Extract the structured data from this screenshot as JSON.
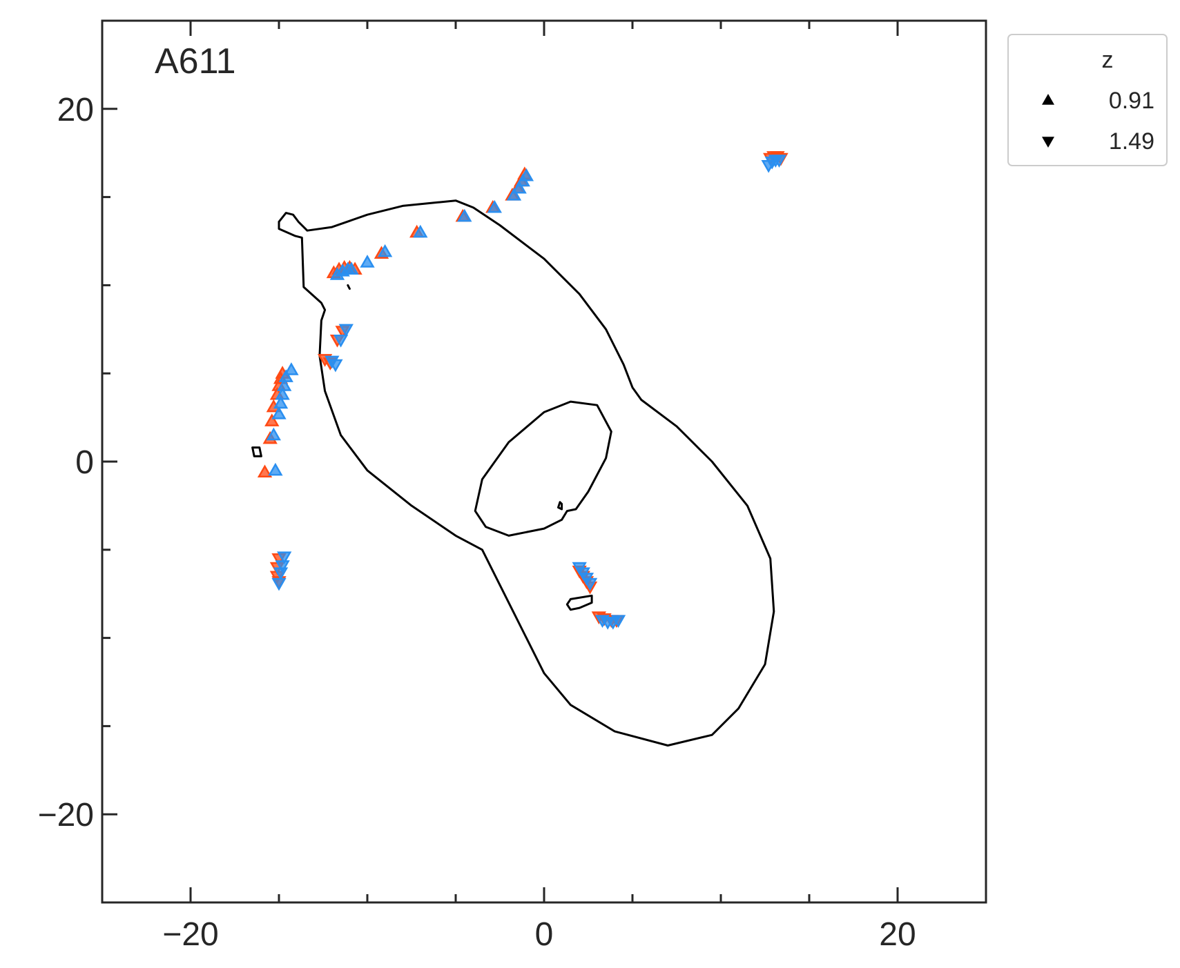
{
  "chart_data": {
    "type": "scatter",
    "title": "A611",
    "xlabel": "",
    "ylabel": "",
    "xlim": [
      -25,
      25
    ],
    "ylim": [
      -25,
      25
    ],
    "x_major_ticks": [
      -20,
      0,
      20
    ],
    "x_tick_labels": [
      "−20",
      "0",
      "20"
    ],
    "y_major_ticks": [
      20,
      0,
      -20
    ],
    "y_tick_labels": [
      "20",
      "0",
      "−20"
    ],
    "minor_ticks": [
      -15,
      -10,
      -5,
      5,
      10,
      15
    ],
    "grid": false,
    "legend": {
      "title": "z",
      "placement": "outside-top-right",
      "entries": [
        {
          "marker": "triangle-up",
          "label": "0.91"
        },
        {
          "marker": "triangle-down",
          "label": "1.49"
        }
      ]
    },
    "series_colors": {
      "red": "#ff4a14",
      "blue": "#2a8ff0"
    },
    "series": [
      {
        "marker": "triangle-up",
        "color": "#ff4a14",
        "points": [
          [
            -15.8,
            -0.6
          ],
          [
            -15.5,
            1.3
          ],
          [
            -15.4,
            2.3
          ],
          [
            -15.3,
            3.1
          ],
          [
            -15.1,
            3.8
          ],
          [
            -15.0,
            4.3
          ],
          [
            -14.9,
            4.7
          ],
          [
            -14.8,
            5.0
          ],
          [
            -11.9,
            10.7
          ],
          [
            -11.6,
            10.9
          ],
          [
            -11.3,
            11.0
          ],
          [
            -11.0,
            11.0
          ],
          [
            -10.7,
            10.9
          ],
          [
            -9.2,
            11.8
          ],
          [
            -7.2,
            13.0
          ],
          [
            -4.6,
            13.9
          ],
          [
            -2.9,
            14.4
          ],
          [
            -1.8,
            15.1
          ],
          [
            -1.5,
            15.5
          ],
          [
            -1.3,
            15.9
          ],
          [
            -1.1,
            16.3
          ]
        ]
      },
      {
        "marker": "triangle-up",
        "color": "#2a8ff0",
        "points": [
          [
            -15.2,
            -0.5
          ],
          [
            -15.3,
            1.5
          ],
          [
            -15.0,
            2.7
          ],
          [
            -14.9,
            3.3
          ],
          [
            -14.8,
            3.8
          ],
          [
            -14.7,
            4.3
          ],
          [
            -14.6,
            4.8
          ],
          [
            -14.3,
            5.2
          ],
          [
            -11.7,
            10.6
          ],
          [
            -11.4,
            10.8
          ],
          [
            -11.1,
            10.9
          ],
          [
            -10.9,
            10.9
          ],
          [
            -10.0,
            11.3
          ],
          [
            -9.0,
            11.9
          ],
          [
            -7.0,
            13.0
          ],
          [
            -4.5,
            13.9
          ],
          [
            -2.8,
            14.4
          ],
          [
            -1.7,
            15.1
          ],
          [
            -1.4,
            15.5
          ],
          [
            -1.2,
            15.9
          ],
          [
            -1.0,
            16.2
          ]
        ]
      },
      {
        "marker": "triangle-down",
        "color": "#ff4a14",
        "points": [
          [
            -15.0,
            -5.5
          ],
          [
            -15.1,
            -6.0
          ],
          [
            -15.1,
            -6.5
          ],
          [
            -15.0,
            -6.8
          ],
          [
            -12.4,
            5.8
          ],
          [
            -12.1,
            5.6
          ],
          [
            -11.7,
            6.9
          ],
          [
            -11.4,
            7.4
          ],
          [
            2.0,
            -6.2
          ],
          [
            2.2,
            -6.5
          ],
          [
            2.4,
            -6.8
          ],
          [
            2.6,
            -7.1
          ],
          [
            3.1,
            -8.8
          ],
          [
            3.4,
            -8.9
          ],
          [
            3.8,
            -9.0
          ],
          [
            4.1,
            -9.0
          ],
          [
            12.8,
            17.2
          ],
          [
            13.0,
            17.3
          ],
          [
            13.2,
            17.3
          ],
          [
            13.4,
            17.2
          ]
        ]
      },
      {
        "marker": "triangle-down",
        "color": "#2a8ff0",
        "points": [
          [
            -14.7,
            -5.4
          ],
          [
            -14.8,
            -5.9
          ],
          [
            -14.9,
            -6.3
          ],
          [
            -15.0,
            -6.9
          ],
          [
            -12.0,
            5.7
          ],
          [
            -11.8,
            5.5
          ],
          [
            -11.5,
            6.9
          ],
          [
            -11.2,
            7.5
          ],
          [
            2.0,
            -6.0
          ],
          [
            2.2,
            -6.3
          ],
          [
            2.4,
            -6.6
          ],
          [
            2.6,
            -6.9
          ],
          [
            3.3,
            -9.0
          ],
          [
            3.6,
            -9.1
          ],
          [
            3.9,
            -9.1
          ],
          [
            4.2,
            -9.0
          ],
          [
            12.7,
            16.8
          ],
          [
            12.9,
            17.0
          ],
          [
            13.1,
            17.1
          ],
          [
            13.3,
            17.1
          ]
        ]
      }
    ],
    "critical_curves": [
      [
        [
          -15,
          13.6
        ],
        [
          -14.6,
          14.1
        ],
        [
          -14.2,
          14.0
        ],
        [
          -13.9,
          13.6
        ],
        [
          -13.4,
          13.1
        ],
        [
          -12.0,
          13.3
        ],
        [
          -10.0,
          14.0
        ],
        [
          -8.0,
          14.5
        ],
        [
          -6.0,
          14.7
        ],
        [
          -5.0,
          14.8
        ],
        [
          -4.0,
          14.4
        ],
        [
          -2.5,
          13.4
        ],
        [
          0.0,
          11.5
        ],
        [
          2.0,
          9.5
        ],
        [
          3.5,
          7.5
        ],
        [
          4.5,
          5.5
        ],
        [
          5.0,
          4.2
        ],
        [
          5.5,
          3.5
        ],
        [
          7.5,
          2.0
        ],
        [
          9.5,
          0.0
        ],
        [
          11.5,
          -2.5
        ],
        [
          12.8,
          -5.5
        ],
        [
          13.0,
          -8.5
        ],
        [
          12.5,
          -11.5
        ],
        [
          11.0,
          -14.0
        ],
        [
          9.5,
          -15.5
        ],
        [
          7.0,
          -16.1
        ],
        [
          4.0,
          -15.3
        ],
        [
          1.5,
          -13.8
        ],
        [
          0.0,
          -12.0
        ],
        [
          -1.0,
          -10.0
        ],
        [
          -2.5,
          -7.0
        ],
        [
          -3.5,
          -5.0
        ],
        [
          -5.0,
          -4.2
        ],
        [
          -7.5,
          -2.5
        ],
        [
          -10.0,
          -0.5
        ],
        [
          -11.5,
          1.5
        ],
        [
          -12.4,
          4.0
        ],
        [
          -12.7,
          6.0
        ],
        [
          -12.6,
          8.0
        ],
        [
          -12.4,
          8.6
        ],
        [
          -12.6,
          9.0
        ],
        [
          -13.6,
          9.9
        ],
        [
          -13.7,
          12.7
        ],
        [
          -14.1,
          12.8
        ],
        [
          -15.0,
          13.2
        ],
        [
          -15,
          13.6
        ]
      ],
      [
        [
          -3.5,
          -1.0
        ],
        [
          -2.0,
          1.1
        ],
        [
          0.0,
          2.8
        ],
        [
          1.5,
          3.4
        ],
        [
          3.0,
          3.2
        ],
        [
          3.8,
          1.7
        ],
        [
          3.5,
          0.2
        ],
        [
          2.5,
          -1.7
        ],
        [
          1.8,
          -2.7
        ],
        [
          1.3,
          -2.8
        ],
        [
          1.0,
          -3.3
        ],
        [
          0.0,
          -3.8
        ],
        [
          -2.0,
          -4.2
        ],
        [
          -3.3,
          -3.7
        ],
        [
          -3.9,
          -2.8
        ],
        [
          -3.5,
          -1.0
        ]
      ],
      [
        [
          1.5,
          -7.8
        ],
        [
          2.7,
          -7.6
        ],
        [
          2.7,
          -8.0
        ],
        [
          2.0,
          -8.3
        ],
        [
          1.5,
          -8.4
        ],
        [
          1.3,
          -8.1
        ],
        [
          1.5,
          -7.8
        ]
      ],
      [
        [
          0.9,
          -2.3
        ],
        [
          1.0,
          -2.4
        ],
        [
          1.0,
          -2.7
        ],
        [
          0.8,
          -2.6
        ],
        [
          0.9,
          -2.3
        ]
      ],
      [
        [
          -16.5,
          0.8
        ],
        [
          -16.1,
          0.8
        ],
        [
          -16.0,
          0.3
        ],
        [
          -16.4,
          0.3
        ],
        [
          -16.5,
          0.8
        ]
      ],
      [
        [
          -11.1,
          10.0
        ],
        [
          -11.0,
          9.8
        ]
      ]
    ]
  }
}
